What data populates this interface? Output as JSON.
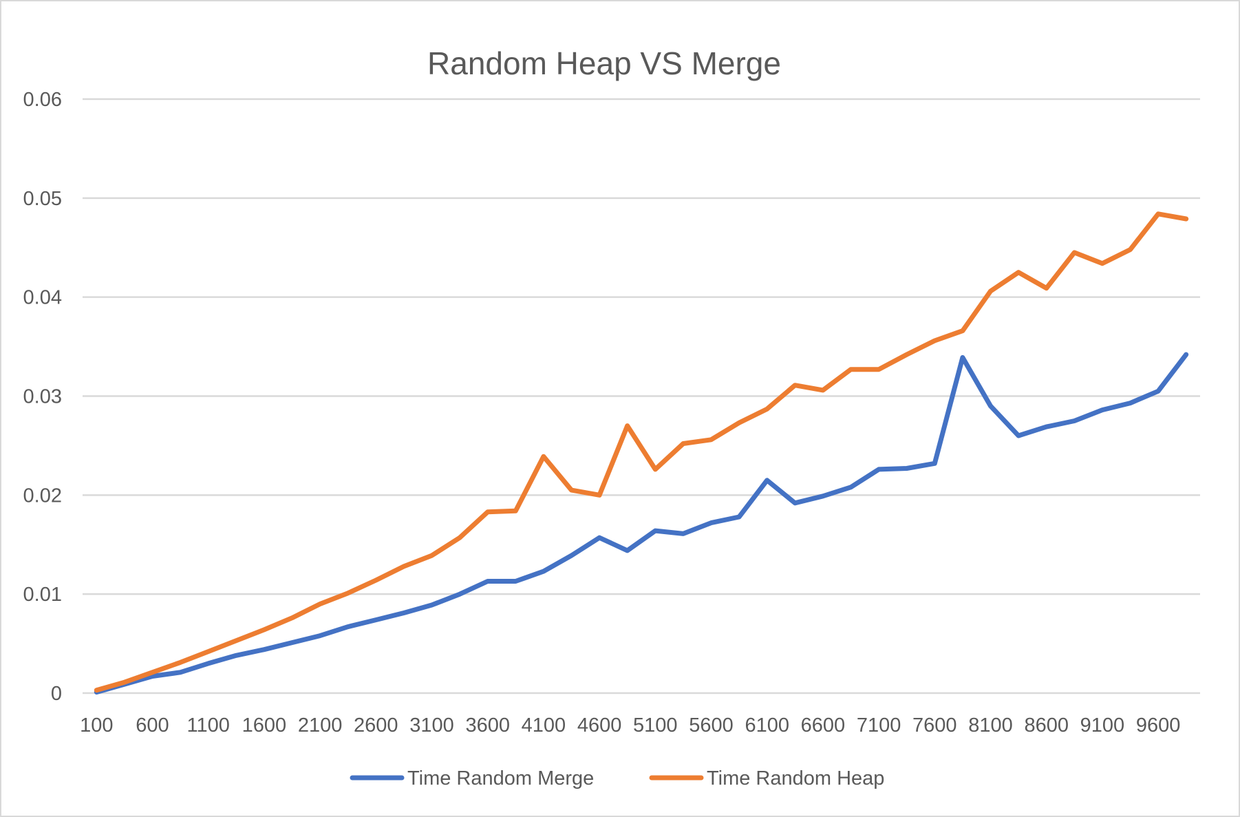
{
  "chart_data": {
    "type": "line",
    "title": "Random Heap VS Merge",
    "xlabel": "",
    "ylabel": "",
    "ylim": [
      0,
      0.06
    ],
    "y_ticks": [
      "0",
      "0.01",
      "0.02",
      "0.03",
      "0.04",
      "0.05",
      "0.06"
    ],
    "x_tick_labels": [
      "100",
      "600",
      "1100",
      "1600",
      "2100",
      "2600",
      "3100",
      "3600",
      "4100",
      "4600",
      "5100",
      "5600",
      "6100",
      "6600",
      "7100",
      "7600",
      "8100",
      "8600",
      "9100",
      "9600"
    ],
    "grid": true,
    "legend_position": "bottom",
    "x": [
      100,
      350,
      600,
      850,
      1100,
      1350,
      1600,
      1850,
      2100,
      2350,
      2600,
      2850,
      3100,
      3350,
      3600,
      3850,
      4100,
      4350,
      4600,
      4850,
      5100,
      5350,
      5600,
      5850,
      6100,
      6350,
      6600,
      6850,
      7100,
      7350,
      7600,
      7850,
      8100,
      8350,
      8600,
      8850,
      9100,
      9350,
      9600,
      9850
    ],
    "series": [
      {
        "name": "Time Random Merge",
        "color": "#4472c4",
        "values": [
          0.0001,
          0.0009,
          0.0017,
          0.0021,
          0.003,
          0.0038,
          0.0044,
          0.0051,
          0.0058,
          0.0067,
          0.0074,
          0.0081,
          0.0089,
          0.01,
          0.0113,
          0.0113,
          0.0123,
          0.0139,
          0.0157,
          0.0144,
          0.0164,
          0.0161,
          0.0172,
          0.0178,
          0.0215,
          0.0192,
          0.0199,
          0.0208,
          0.0226,
          0.0227,
          0.0232,
          0.0339,
          0.029,
          0.026,
          0.0269,
          0.0275,
          0.0286,
          0.0293,
          0.0305,
          0.0342
        ]
      },
      {
        "name": "Time Random Heap",
        "color": "#ed7d31",
        "values": [
          0.0003,
          0.0011,
          0.0021,
          0.0031,
          0.0042,
          0.0053,
          0.0064,
          0.0076,
          0.009,
          0.0101,
          0.0114,
          0.0128,
          0.0139,
          0.0157,
          0.0183,
          0.0184,
          0.0239,
          0.0205,
          0.02,
          0.027,
          0.0226,
          0.0252,
          0.0256,
          0.0273,
          0.0287,
          0.0311,
          0.0306,
          0.0327,
          0.0327,
          0.0342,
          0.0356,
          0.0366,
          0.0406,
          0.0425,
          0.0409,
          0.0445,
          0.0434,
          0.0448,
          0.0484,
          0.0479
        ]
      }
    ]
  }
}
